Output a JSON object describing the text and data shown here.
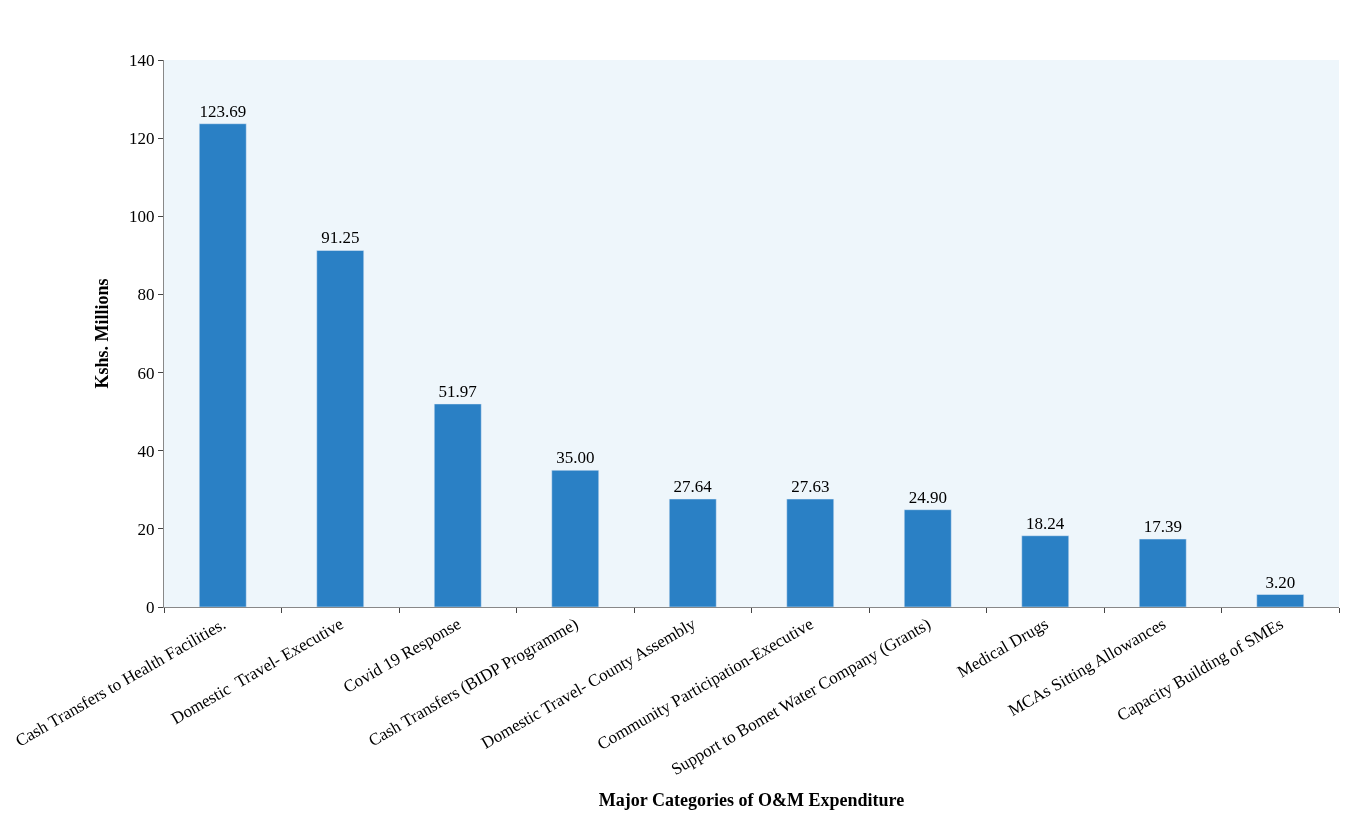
{
  "chart_data": {
    "type": "bar",
    "xlabel": "Major Categories of O&M Expenditure",
    "ylabel": "Kshs. Millions",
    "categories": [
      "Cash Transfers to Health Facilities.",
      "Domestic  Travel- Executive",
      "Covid 19 Response",
      "Cash Transfers (BIDP Programme)",
      "Domestic Travel- County Assembly",
      "Community Participation-Executive",
      "Support to Bomet Water Company (Grants)",
      "Medical Drugs",
      "MCAs Sitting Allowances",
      "Capacity Building of SMEs"
    ],
    "values": [
      123.69,
      91.25,
      51.97,
      35.0,
      27.64,
      27.63,
      24.9,
      18.24,
      17.39,
      3.2
    ],
    "value_labels": [
      "123.69",
      "91.25",
      "51.97",
      "35.00",
      "27.64",
      "27.63",
      "24.90",
      "18.24",
      "17.39",
      "3.20"
    ],
    "color": "#2a80c5",
    "ylim": [
      0,
      140
    ],
    "yticks": [
      0,
      20,
      40,
      60,
      80,
      100,
      120,
      140
    ],
    "grid": false,
    "legend": false
  }
}
